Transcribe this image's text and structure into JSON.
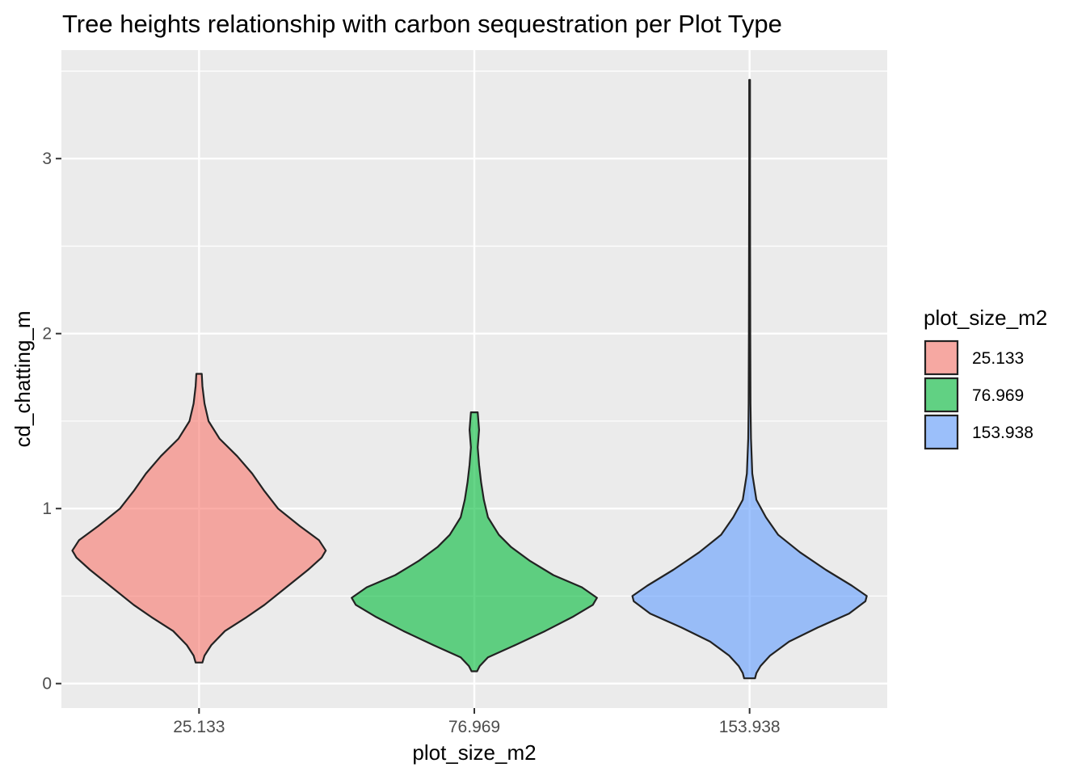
{
  "chart_data": {
    "type": "violin",
    "title": "Tree heights relationship with carbon sequestration per Plot Type",
    "xlabel": "plot_size_m2",
    "ylabel": "cd_chatting_m",
    "categories": [
      "25.133",
      "76.969",
      "153.938"
    ],
    "y_ticks": [
      "0",
      "1",
      "2",
      "3"
    ],
    "ylim": [
      -0.14,
      3.62
    ],
    "grid": true,
    "legend": {
      "title": "plot_size_m2",
      "position": "right",
      "entries": [
        "25.133",
        "76.969",
        "153.938"
      ]
    },
    "colors": [
      "#F8766D",
      "#00BA38",
      "#619CFF"
    ],
    "series": [
      {
        "category": "25.133",
        "min": 0.12,
        "max": 1.77,
        "profile": [
          [
            0.12,
            0.025
          ],
          [
            0.16,
            0.04
          ],
          [
            0.22,
            0.09
          ],
          [
            0.3,
            0.19
          ],
          [
            0.38,
            0.35
          ],
          [
            0.45,
            0.48
          ],
          [
            0.55,
            0.64
          ],
          [
            0.65,
            0.8
          ],
          [
            0.72,
            0.9
          ],
          [
            0.76,
            0.93
          ],
          [
            0.82,
            0.88
          ],
          [
            0.9,
            0.74
          ],
          [
            1.0,
            0.58
          ],
          [
            1.1,
            0.48
          ],
          [
            1.2,
            0.39
          ],
          [
            1.3,
            0.28
          ],
          [
            1.4,
            0.15
          ],
          [
            1.5,
            0.07
          ],
          [
            1.6,
            0.04
          ],
          [
            1.7,
            0.025
          ],
          [
            1.77,
            0.02
          ]
        ]
      },
      {
        "category": "76.969",
        "min": 0.07,
        "max": 1.55,
        "profile": [
          [
            0.07,
            0.02
          ],
          [
            0.1,
            0.04
          ],
          [
            0.15,
            0.1
          ],
          [
            0.22,
            0.3
          ],
          [
            0.3,
            0.52
          ],
          [
            0.38,
            0.72
          ],
          [
            0.45,
            0.87
          ],
          [
            0.49,
            0.9
          ],
          [
            0.55,
            0.79
          ],
          [
            0.62,
            0.58
          ],
          [
            0.7,
            0.41
          ],
          [
            0.78,
            0.27
          ],
          [
            0.85,
            0.18
          ],
          [
            0.95,
            0.1
          ],
          [
            1.05,
            0.07
          ],
          [
            1.15,
            0.05
          ],
          [
            1.25,
            0.035
          ],
          [
            1.35,
            0.025
          ],
          [
            1.45,
            0.035
          ],
          [
            1.55,
            0.025
          ]
        ]
      },
      {
        "category": "153.938",
        "min": 0.03,
        "max": 3.45,
        "profile": [
          [
            0.03,
            0.04
          ],
          [
            0.06,
            0.05
          ],
          [
            0.1,
            0.08
          ],
          [
            0.16,
            0.15
          ],
          [
            0.24,
            0.29
          ],
          [
            0.32,
            0.5
          ],
          [
            0.4,
            0.73
          ],
          [
            0.47,
            0.85
          ],
          [
            0.5,
            0.86
          ],
          [
            0.56,
            0.75
          ],
          [
            0.65,
            0.56
          ],
          [
            0.75,
            0.37
          ],
          [
            0.85,
            0.21
          ],
          [
            0.95,
            0.12
          ],
          [
            1.05,
            0.05
          ],
          [
            1.2,
            0.02
          ],
          [
            1.4,
            0.01
          ],
          [
            1.6,
            0.007
          ],
          [
            2.0,
            0.005
          ],
          [
            2.5,
            0.004
          ],
          [
            3.0,
            0.003
          ],
          [
            3.45,
            0.003
          ]
        ]
      }
    ]
  }
}
